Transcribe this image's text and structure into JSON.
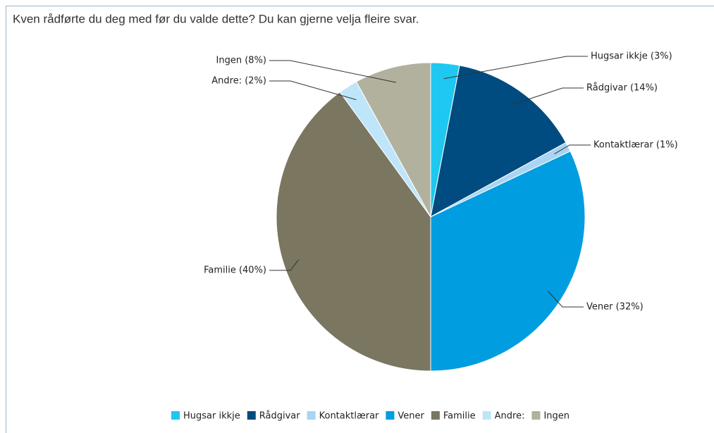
{
  "chart_data": {
    "type": "pie",
    "title": "Kven rådførte du deg med før du valde dette? Du kan gjerne velja fleire svar.",
    "categories": [
      "Hugsar ikkje",
      "Rådgivar",
      "Kontaktlærar",
      "Vener",
      "Familie",
      "Andre:",
      "Ingen"
    ],
    "values": [
      3,
      14,
      1,
      32,
      40,
      2,
      8
    ],
    "value_labels": [
      "Hugsar ikkje (3%)",
      "Rådgivar (14%)",
      "Kontaktlærar (1%)",
      "Vener (32%)",
      "Familie (40%)",
      "Andre: (2%)",
      "Ingen (8%)"
    ],
    "colors": [
      "#1ec8f0",
      "#004b7f",
      "#a9d4f2",
      "#009de0",
      "#7a7660",
      "#bfe5fa",
      "#b2b19e"
    ],
    "legend": "bottom"
  }
}
